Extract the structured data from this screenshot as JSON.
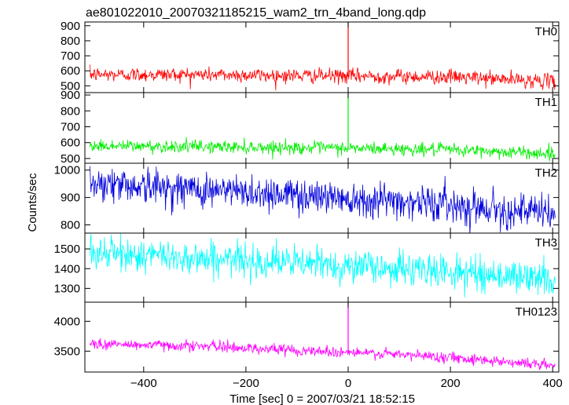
{
  "title": "ae801022010_20070321185215_wam2_trn_4band_long.qdp",
  "y_axis_label": "Counts/sec",
  "x_axis_label": "Time [sec] 0 = 2007/03/21 18:52:15",
  "chart_data": [
    {
      "type": "line",
      "name": "TH0",
      "color": "#ff0000",
      "xlim": [
        -515,
        412
      ],
      "ylim": [
        455,
        925
      ],
      "yticks": [
        500,
        600,
        700,
        800,
        900
      ],
      "xticks": [
        -400,
        -200,
        0,
        200,
        400
      ],
      "grid": false,
      "trend": [
        [
          -505,
          575
        ],
        [
          -300,
          575
        ],
        [
          0,
          565
        ],
        [
          200,
          560
        ],
        [
          400,
          530
        ]
      ],
      "noise_sd": 24,
      "spike": {
        "x": 0,
        "y": 925
      },
      "n_points": 900
    },
    {
      "type": "line",
      "name": "TH1",
      "color": "#00ee00",
      "xlim": [
        -515,
        412
      ],
      "ylim": [
        470,
        915
      ],
      "yticks": [
        500,
        600,
        700,
        800,
        900
      ],
      "xticks": [
        -400,
        -200,
        0,
        200,
        400
      ],
      "grid": false,
      "trend": [
        [
          -505,
          580
        ],
        [
          -300,
          575
        ],
        [
          0,
          565
        ],
        [
          200,
          555
        ],
        [
          400,
          530
        ]
      ],
      "noise_sd": 20,
      "spike": {
        "x": 0,
        "y": 915
      },
      "n_points": 900
    },
    {
      "type": "line",
      "name": "TH2",
      "color": "#0000dd",
      "xlim": [
        -515,
        412
      ],
      "ylim": [
        770,
        1025
      ],
      "yticks": [
        800,
        900,
        1000
      ],
      "xticks": [
        -400,
        -200,
        0,
        200,
        400
      ],
      "grid": false,
      "trend": [
        [
          -505,
          955
        ],
        [
          -300,
          930
        ],
        [
          0,
          900
        ],
        [
          200,
          875
        ],
        [
          400,
          840
        ]
      ],
      "noise_sd": 32,
      "spike": null,
      "n_points": 900
    },
    {
      "type": "line",
      "name": "TH3",
      "color": "#00ffff",
      "xlim": [
        -515,
        412
      ],
      "ylim": [
        1230,
        1580
      ],
      "yticks": [
        1300,
        1400,
        1500
      ],
      "xticks": [
        -400,
        -200,
        0,
        200,
        400
      ],
      "grid": false,
      "trend": [
        [
          -505,
          1480
        ],
        [
          -300,
          1455
        ],
        [
          0,
          1415
        ],
        [
          200,
          1385
        ],
        [
          400,
          1345
        ]
      ],
      "noise_sd": 42,
      "spike": null,
      "n_points": 900
    },
    {
      "type": "line",
      "name": "TH0123",
      "color": "#ff00ff",
      "xlim": [
        -515,
        412
      ],
      "ylim": [
        3150,
        4320
      ],
      "yticks": [
        3500,
        4000
      ],
      "xticks": [
        -400,
        -200,
        0,
        200,
        400
      ],
      "xticklabels": [
        "−400",
        "−200",
        "0",
        "200",
        "400"
      ],
      "grid": false,
      "trend": [
        [
          -505,
          3620
        ],
        [
          -300,
          3590
        ],
        [
          0,
          3480
        ],
        [
          200,
          3400
        ],
        [
          400,
          3260
        ]
      ],
      "noise_sd": 45,
      "spike": {
        "x": 0,
        "y": 4330
      },
      "n_points": 900
    }
  ]
}
